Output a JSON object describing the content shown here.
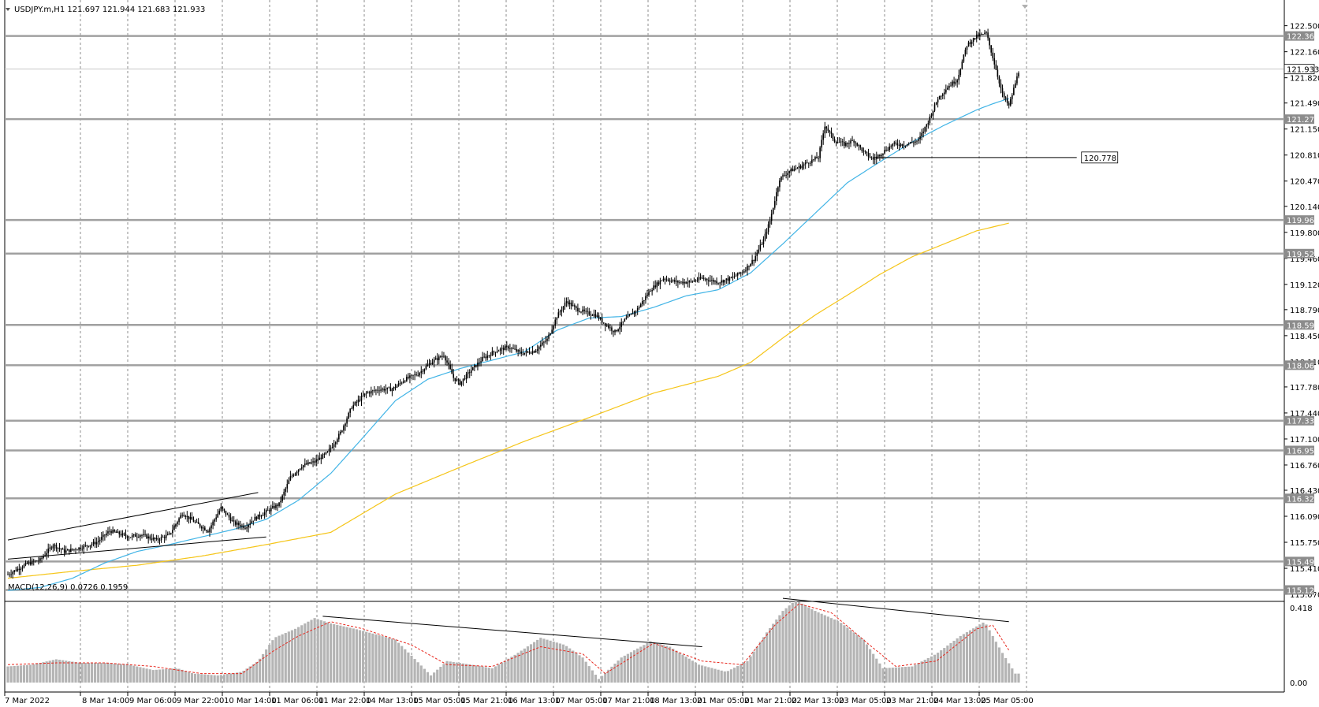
{
  "header": {
    "symbol_info": "USDJPY.m,H1  121.697 121.944 121.683 121.933",
    "macd_info": "MACD(12,26,9) 0.0726 0.1959"
  },
  "colors": {
    "background": "#ffffff",
    "candle": "#000000",
    "ma_fast": "#41b4e6",
    "ma_slow": "#f5c518",
    "level_line": "#a0a0a0",
    "macd_hist": "#b4b4b4",
    "macd_signal": "#e8281e",
    "grid": "#8c8c8c"
  },
  "chart_data": [
    {
      "type": "candlestick",
      "title": "",
      "symbol": "USDJPY.m",
      "timeframe": "H1",
      "ohlc_last": {
        "open": 121.697,
        "high": 121.944,
        "low": 121.683,
        "close": 121.933
      },
      "ylim": [
        115.05,
        122.63
      ],
      "y_ticks": [
        "122.500",
        "122.160",
        "121.820",
        "121.490",
        "121.150",
        "120.810",
        "120.470",
        "120.140",
        "119.800",
        "119.460",
        "119.120",
        "118.790",
        "118.450",
        "118.110",
        "117.780",
        "117.440",
        "117.100",
        "116.760",
        "116.430",
        "116.090",
        "115.750",
        "115.410",
        "115.070"
      ],
      "x_ticks": [
        "7 Mar 2022",
        "8 Mar 14:00",
        "9 Mar 06:00",
        "9 Mar 22:00",
        "10 Mar 14:00",
        "11 Mar 06:00",
        "11 Mar 22:00",
        "14 Mar 13:00",
        "15 Mar 05:00",
        "15 Mar 21:00",
        "16 Mar 13:00",
        "17 Mar 05:00",
        "17 Mar 21:00",
        "18 Mar 13:00",
        "21 Mar 05:00",
        "21 Mar 21:00",
        "22 Mar 13:00",
        "23 Mar 05:00",
        "23 Mar 21:00",
        "24 Mar 13:00",
        "25 Mar 05:00"
      ],
      "close_path": [
        [
          0,
          115.33
        ],
        [
          12,
          115.47
        ],
        [
          20,
          115.52
        ],
        [
          28,
          115.72
        ],
        [
          35,
          115.63
        ],
        [
          45,
          115.68
        ],
        [
          55,
          115.75
        ],
        [
          63,
          115.9
        ],
        [
          75,
          115.82
        ],
        [
          82,
          115.85
        ],
        [
          92,
          115.78
        ],
        [
          100,
          115.85
        ],
        [
          108,
          116.13
        ],
        [
          118,
          115.98
        ],
        [
          124,
          115.9
        ],
        [
          132,
          116.2
        ],
        [
          140,
          116.0
        ],
        [
          147,
          115.95
        ],
        [
          152,
          116.05
        ],
        [
          160,
          116.15
        ],
        [
          168,
          116.25
        ],
        [
          175,
          116.6
        ],
        [
          182,
          116.75
        ],
        [
          190,
          116.8
        ],
        [
          198,
          116.92
        ],
        [
          206,
          117.18
        ],
        [
          213,
          117.52
        ],
        [
          222,
          117.7
        ],
        [
          230,
          117.75
        ],
        [
          238,
          117.75
        ],
        [
          246,
          117.88
        ],
        [
          254,
          117.95
        ],
        [
          262,
          118.1
        ],
        [
          270,
          118.2
        ],
        [
          276,
          117.9
        ],
        [
          280,
          117.83
        ],
        [
          287,
          118.0
        ],
        [
          294,
          118.15
        ],
        [
          302,
          118.25
        ],
        [
          310,
          118.3
        ],
        [
          318,
          118.22
        ],
        [
          326,
          118.25
        ],
        [
          334,
          118.4
        ],
        [
          340,
          118.7
        ],
        [
          346,
          118.9
        ],
        [
          352,
          118.8
        ],
        [
          358,
          118.75
        ],
        [
          364,
          118.72
        ],
        [
          370,
          118.6
        ],
        [
          376,
          118.5
        ],
        [
          382,
          118.65
        ],
        [
          390,
          118.8
        ],
        [
          398,
          119.05
        ],
        [
          406,
          119.2
        ],
        [
          414,
          119.15
        ],
        [
          422,
          119.15
        ],
        [
          430,
          119.2
        ],
        [
          440,
          119.15
        ],
        [
          448,
          119.2
        ],
        [
          456,
          119.3
        ],
        [
          462,
          119.45
        ],
        [
          468,
          119.7
        ],
        [
          472,
          119.95
        ],
        [
          478,
          120.5
        ],
        [
          484,
          120.6
        ],
        [
          490,
          120.65
        ],
        [
          496,
          120.72
        ],
        [
          502,
          120.78
        ],
        [
          506,
          121.2
        ],
        [
          512,
          121.0
        ],
        [
          518,
          120.95
        ],
        [
          524,
          121.0
        ],
        [
          530,
          120.85
        ],
        [
          536,
          120.75
        ],
        [
          542,
          120.85
        ],
        [
          548,
          120.95
        ],
        [
          556,
          120.95
        ],
        [
          564,
          121.0
        ],
        [
          570,
          121.25
        ],
        [
          576,
          121.55
        ],
        [
          582,
          121.7
        ],
        [
          588,
          121.8
        ],
        [
          594,
          122.25
        ],
        [
          600,
          122.36
        ],
        [
          606,
          122.4
        ],
        [
          612,
          121.93
        ],
        [
          616,
          121.6
        ],
        [
          620,
          121.45
        ],
        [
          626,
          121.9
        ]
      ],
      "ma_fast": [
        [
          0,
          115.12
        ],
        [
          20,
          115.16
        ],
        [
          40,
          115.28
        ],
        [
          60,
          115.48
        ],
        [
          80,
          115.63
        ],
        [
          100,
          115.72
        ],
        [
          120,
          115.82
        ],
        [
          140,
          115.92
        ],
        [
          160,
          116.05
        ],
        [
          180,
          116.3
        ],
        [
          200,
          116.65
        ],
        [
          220,
          117.12
        ],
        [
          240,
          117.6
        ],
        [
          260,
          117.88
        ],
        [
          280,
          118.02
        ],
        [
          300,
          118.13
        ],
        [
          320,
          118.24
        ],
        [
          340,
          118.52
        ],
        [
          360,
          118.68
        ],
        [
          380,
          118.7
        ],
        [
          400,
          118.82
        ],
        [
          420,
          118.97
        ],
        [
          440,
          119.05
        ],
        [
          460,
          119.27
        ],
        [
          480,
          119.65
        ],
        [
          500,
          120.05
        ],
        [
          520,
          120.45
        ],
        [
          540,
          120.72
        ],
        [
          560,
          120.98
        ],
        [
          580,
          121.2
        ],
        [
          600,
          121.4
        ],
        [
          610,
          121.48
        ],
        [
          620,
          121.55
        ]
      ],
      "ma_slow": [
        [
          0,
          115.28
        ],
        [
          40,
          115.37
        ],
        [
          80,
          115.45
        ],
        [
          120,
          115.57
        ],
        [
          160,
          115.72
        ],
        [
          200,
          115.88
        ],
        [
          240,
          116.38
        ],
        [
          280,
          116.73
        ],
        [
          320,
          117.07
        ],
        [
          360,
          117.38
        ],
        [
          400,
          117.7
        ],
        [
          440,
          117.92
        ],
        [
          460,
          118.1
        ],
        [
          480,
          118.42
        ],
        [
          500,
          118.72
        ],
        [
          520,
          118.98
        ],
        [
          540,
          119.25
        ],
        [
          560,
          119.48
        ],
        [
          580,
          119.65
        ],
        [
          600,
          119.82
        ],
        [
          620,
          119.92
        ]
      ],
      "horizontal_levels": [
        122.366,
        121.933,
        121.279,
        119.961,
        119.522,
        118.59,
        118.064,
        117.339,
        116.95,
        116.324,
        115.499,
        115.127
      ],
      "level_labels": [
        "122.366",
        "121.933",
        "121.279",
        "119.961",
        "119.522",
        "118.590",
        "118.064",
        "117.339",
        "116.950",
        "116.324",
        "115.499",
        "115.127"
      ],
      "marked_price": "120.778",
      "trend_lines": [
        {
          "from": [
            0,
            115.78
          ],
          "to": [
            155,
            116.4
          ]
        },
        {
          "from": [
            0,
            115.53
          ],
          "to": [
            160,
            115.82
          ]
        },
        {
          "from": [
            536,
            120.778
          ],
          "to": [
            662,
            120.778
          ]
        }
      ]
    },
    {
      "type": "bar",
      "title": "",
      "series_name": "MACD(12,26,9)",
      "main_last": 0.0726,
      "signal_last": 0.1959,
      "ylim": [
        0.0,
        0.418
      ],
      "y_ticks": [
        "0.418",
        "0.00"
      ],
      "hist_path": [
        [
          0,
          0.09
        ],
        [
          15,
          0.1
        ],
        [
          30,
          0.13
        ],
        [
          45,
          0.11
        ],
        [
          60,
          0.11
        ],
        [
          75,
          0.1
        ],
        [
          90,
          0.07
        ],
        [
          105,
          0.08
        ],
        [
          115,
          0.05
        ],
        [
          130,
          0.04
        ],
        [
          145,
          0.06
        ],
        [
          155,
          0.12
        ],
        [
          165,
          0.25
        ],
        [
          178,
          0.3
        ],
        [
          190,
          0.36
        ],
        [
          200,
          0.33
        ],
        [
          215,
          0.3
        ],
        [
          240,
          0.24
        ],
        [
          250,
          0.15
        ],
        [
          262,
          0.04
        ],
        [
          272,
          0.12
        ],
        [
          287,
          0.1
        ],
        [
          300,
          0.08
        ],
        [
          315,
          0.16
        ],
        [
          330,
          0.25
        ],
        [
          345,
          0.21
        ],
        [
          356,
          0.14
        ],
        [
          366,
          0.02
        ],
        [
          380,
          0.14
        ],
        [
          398,
          0.23
        ],
        [
          410,
          0.2
        ],
        [
          428,
          0.1
        ],
        [
          445,
          0.06
        ],
        [
          458,
          0.12
        ],
        [
          470,
          0.28
        ],
        [
          480,
          0.4
        ],
        [
          488,
          0.46
        ],
        [
          500,
          0.4
        ],
        [
          515,
          0.34
        ],
        [
          530,
          0.24
        ],
        [
          542,
          0.08
        ],
        [
          560,
          0.09
        ],
        [
          575,
          0.16
        ],
        [
          590,
          0.26
        ],
        [
          605,
          0.34
        ],
        [
          615,
          0.18
        ],
        [
          624,
          0.05
        ]
      ],
      "signal_path": [
        [
          0,
          0.1
        ],
        [
          30,
          0.11
        ],
        [
          60,
          0.11
        ],
        [
          90,
          0.09
        ],
        [
          120,
          0.05
        ],
        [
          145,
          0.05
        ],
        [
          165,
          0.18
        ],
        [
          180,
          0.26
        ],
        [
          200,
          0.34
        ],
        [
          220,
          0.3
        ],
        [
          250,
          0.21
        ],
        [
          272,
          0.1
        ],
        [
          300,
          0.09
        ],
        [
          330,
          0.2
        ],
        [
          356,
          0.16
        ],
        [
          370,
          0.05
        ],
        [
          400,
          0.22
        ],
        [
          430,
          0.12
        ],
        [
          455,
          0.1
        ],
        [
          475,
          0.32
        ],
        [
          490,
          0.44
        ],
        [
          510,
          0.39
        ],
        [
          535,
          0.2
        ],
        [
          550,
          0.09
        ],
        [
          575,
          0.12
        ],
        [
          600,
          0.3
        ],
        [
          610,
          0.32
        ],
        [
          620,
          0.18
        ]
      ],
      "trend_lines": [
        {
          "from": [
            195,
            0.37
          ],
          "to": [
            430,
            0.2
          ]
        },
        {
          "from": [
            480,
            0.47
          ],
          "to": [
            620,
            0.34
          ]
        }
      ]
    }
  ]
}
